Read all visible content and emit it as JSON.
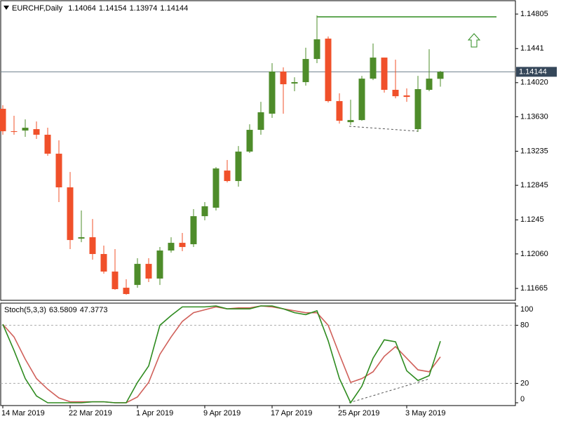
{
  "chart_data": [
    {
      "type": "candlestick",
      "title": "EURCHF,Daily",
      "categories": [
        "14 Mar 2019",
        null,
        null,
        null,
        null,
        null,
        "22 Mar 2019",
        null,
        null,
        null,
        null,
        null,
        "1 Apr 2019",
        null,
        null,
        null,
        null,
        null,
        "9 Apr 2019",
        null,
        null,
        null,
        null,
        null,
        "17 Apr 2019",
        null,
        null,
        null,
        null,
        null,
        "25 Apr 2019",
        null,
        null,
        null,
        null,
        null,
        "3 May 2019",
        null,
        null,
        null
      ],
      "open": [
        1.13721,
        1.13464,
        1.13472,
        1.13488,
        1.13424,
        1.13207,
        1.12822,
        1.12235,
        1.12251,
        1.12059,
        1.11858,
        1.11673,
        1.11705,
        1.11946,
        1.11778,
        1.12099,
        1.12187,
        1.12171,
        1.12492,
        1.12589,
        1.13014,
        1.12894,
        1.13231,
        1.1348,
        1.13665,
        1.14147,
        1.1401,
        1.14026,
        1.14291,
        1.14524,
        1.13809,
        1.13568,
        1.13592,
        1.14066,
        1.14307,
        1.13938,
        1.13874,
        1.13488,
        1.13938,
        1.14064
      ],
      "high": [
        1.13761,
        1.13641,
        1.136,
        1.13576,
        1.13504,
        1.1336,
        1.12998,
        1.12557,
        1.1246,
        1.12155,
        1.12115,
        1.1177,
        1.12011,
        1.12011,
        1.12139,
        1.12251,
        1.123,
        1.12573,
        1.12653,
        1.13054,
        1.13135,
        1.13295,
        1.13544,
        1.13801,
        1.14243,
        1.14195,
        1.14082,
        1.1442,
        1.14789,
        1.14548,
        1.13898,
        1.13825,
        1.14098,
        1.14468,
        1.14307,
        1.14283,
        1.13954,
        1.14098,
        1.14403,
        1.14154
      ],
      "low": [
        1.13424,
        1.13424,
        1.134,
        1.13376,
        1.13183,
        1.12653,
        1.12115,
        1.12195,
        1.11994,
        1.11834,
        1.11649,
        1.11593,
        1.11673,
        1.11738,
        1.11705,
        1.12075,
        1.12091,
        1.12139,
        1.12444,
        1.12557,
        1.12878,
        1.1283,
        1.13215,
        1.13424,
        1.13617,
        1.13665,
        1.13922,
        1.13986,
        1.14243,
        1.13793,
        1.13552,
        1.13536,
        1.13584,
        1.1405,
        1.13906,
        1.13841,
        1.13801,
        1.13456,
        1.13922,
        1.13974
      ],
      "close": [
        1.13464,
        1.13456,
        1.13504,
        1.13424,
        1.13207,
        1.12822,
        1.12219,
        1.12251,
        1.12059,
        1.11858,
        1.11657,
        1.11601,
        1.11946,
        1.11778,
        1.12099,
        1.12187,
        1.12139,
        1.12492,
        1.12605,
        1.13038,
        1.12894,
        1.13231,
        1.1348,
        1.13681,
        1.14147,
        1.14002,
        1.14026,
        1.14291,
        1.14516,
        1.13809,
        1.13584,
        1.13592,
        1.14066,
        1.14307,
        1.13938,
        1.13865,
        1.13857,
        1.13946,
        1.14066,
        1.14144
      ],
      "up_color": "#4e8c2a",
      "down_color": "#f0502a",
      "ylim": [
        1.11529,
        1.14966
      ],
      "yticks": [
        1.14805,
        1.1441,
        {
          "value": 1.1402,
          "label": "1.14020"
        },
        {
          "value": 1.1363,
          "label": "1.13630"
        },
        1.13235,
        1.12845,
        1.1245,
        {
          "value": 1.1206,
          "label": "1.12060"
        },
        1.11665
      ]
    },
    {
      "type": "line",
      "title": "Stoch(5,3,3)",
      "series": [
        {
          "color": "#2e8b1f",
          "values": [
            81,
            54,
            25,
            7,
            0,
            0,
            0,
            0,
            1,
            1,
            0,
            0,
            21,
            38,
            80,
            90,
            99,
            99,
            99,
            100,
            97,
            97,
            97,
            100,
            100,
            97,
            93,
            91,
            95,
            64,
            25,
            0,
            17,
            46,
            65,
            63,
            33,
            23,
            28,
            63.5809
          ]
        },
        {
          "color": "#d0605a",
          "values": [
            81,
            68,
            45,
            25,
            14,
            5,
            1,
            1,
            1,
            1,
            0,
            0,
            6,
            21,
            50,
            68,
            84,
            93,
            96,
            99,
            97,
            98,
            98,
            100,
            99,
            97,
            95,
            93,
            93,
            80,
            50,
            21,
            25,
            32,
            48,
            58,
            46,
            34,
            32,
            47.3773
          ]
        }
      ],
      "ylim": [
        0,
        100
      ],
      "yticks": [
        100,
        80,
        20,
        0
      ]
    }
  ]
}
